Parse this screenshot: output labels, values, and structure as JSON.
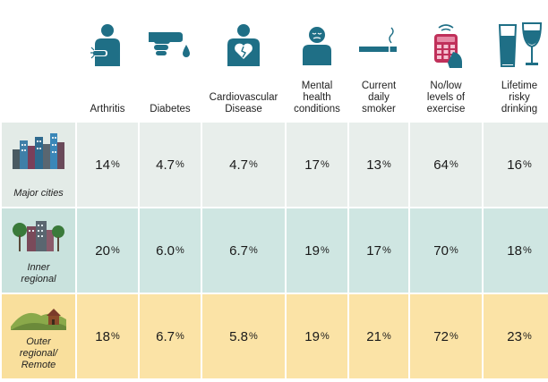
{
  "chart_data": {
    "type": "table",
    "columns": [
      "Arthritis",
      "Diabetes",
      "Cardiovascular Disease",
      "Mental health conditions",
      "Current daily smoker",
      "No/low levels of exercise",
      "Lifetime risky drinking"
    ],
    "rows": [
      {
        "label": "Major cities",
        "values": [
          "14",
          "4.7",
          "4.7",
          "17",
          "13",
          "64",
          "16"
        ]
      },
      {
        "label": "Inner regional",
        "values": [
          "20",
          "6.0",
          "6.7",
          "19",
          "17",
          "70",
          "18"
        ]
      },
      {
        "label": "Outer regional/ Remote",
        "values": [
          "18",
          "6.7",
          "5.8",
          "19",
          "21",
          "72",
          "23"
        ]
      }
    ],
    "unit": "%"
  },
  "header_labels": [
    "Arthritis",
    "Diabetes",
    "Cardiovascular\nDisease",
    "Mental\nhealth\nconditions",
    "Current daily\nsmoker",
    "No/low\nlevels of\nexercise",
    "Lifetime\nrisky\ndrinking"
  ],
  "row_labels": [
    "Major cities",
    "Inner\nregional",
    "Outer\nregional/\nRemote"
  ],
  "icons": [
    "arthritis-icon",
    "diabetes-icon",
    "heart-icon",
    "mental-health-icon",
    "cigarette-icon",
    "phone-icon",
    "drinks-icon",
    "city-icon",
    "town-icon",
    "rural-icon"
  ],
  "colors": {
    "icon": "#1f6f86",
    "row1": "#e8eeeb",
    "row2": "#cfe6e2",
    "row3": "#fbe3a6"
  }
}
